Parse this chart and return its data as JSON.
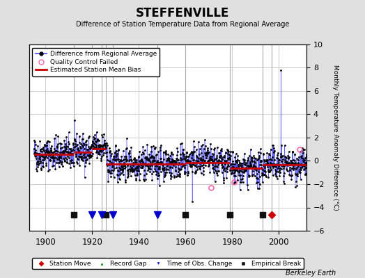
{
  "title": "STEFFENVILLE",
  "subtitle": "Difference of Station Temperature Data from Regional Average",
  "ylabel": "Monthly Temperature Anomaly Difference (°C)",
  "xlim": [
    1893,
    2012
  ],
  "ylim": [
    -6,
    10
  ],
  "yticks": [
    -6,
    -4,
    -2,
    0,
    2,
    4,
    6,
    8,
    10
  ],
  "xticks": [
    1900,
    1920,
    1940,
    1960,
    1980,
    2000
  ],
  "background_color": "#e0e0e0",
  "plot_bg_color": "#ffffff",
  "grid_color": "#cccccc",
  "seed": 42,
  "empirical_breaks": [
    1912,
    1926,
    1960,
    1979,
    1993
  ],
  "time_of_obs_changes": [
    1920,
    1924,
    1929,
    1948
  ],
  "station_moves": [
    1997
  ],
  "record_gaps": [],
  "qc_failed_years": [
    1971,
    1981,
    2009
  ],
  "segments": [
    {
      "start": 1895,
      "end": 1912,
      "mean": 0.6
    },
    {
      "start": 1912,
      "end": 1920,
      "mean": 0.8
    },
    {
      "start": 1920,
      "end": 1926,
      "mean": 1.2
    },
    {
      "start": 1926,
      "end": 1960,
      "mean": -0.2
    },
    {
      "start": 1960,
      "end": 1979,
      "mean": -0.1
    },
    {
      "start": 1979,
      "end": 1993,
      "mean": -0.7
    },
    {
      "start": 1993,
      "end": 2012,
      "mean": -0.3
    }
  ],
  "noise_std": 0.9,
  "special_spike_year": 2001,
  "special_spike_value": 7.8,
  "special_dip_year": 1963,
  "special_dip_value": -3.5,
  "marker_y": -4.6,
  "legend_bg": "#ffffff",
  "line_color": "#4444ff",
  "marker_color": "#000000",
  "qc_color": "#ff66aa",
  "bias_color": "#cc0000",
  "station_move_color": "#cc0000",
  "record_gap_color": "#008800",
  "time_obs_color": "#0000cc",
  "empirical_break_color": "#111111",
  "footer_text": "Berkeley Earth",
  "bias_segment_means": [
    0.55,
    0.75,
    1.05,
    -0.25,
    -0.15,
    -0.65,
    -0.35
  ]
}
